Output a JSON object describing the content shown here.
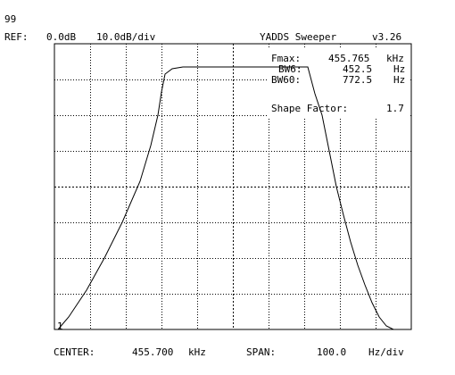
{
  "header": {
    "number": "99",
    "ref_label": "REF:",
    "ref_value": "0.0dB",
    "scale": "10.0dB/div",
    "title": "YADDS Sweeper",
    "version": "v3.26"
  },
  "readout": {
    "fmax_label": "Fmax:",
    "fmax_value": "455.765",
    "fmax_unit": "kHz",
    "bw6_label": "BW6:",
    "bw6_value": "452.5",
    "bw6_unit": "Hz",
    "bw60_label": "BW60:",
    "bw60_value": "772.5",
    "bw60_unit": "Hz",
    "shape_label": "Shape Factor:",
    "shape_value": "1.7"
  },
  "marker_label": "1",
  "footer": {
    "center_label": "CENTER:",
    "center_value": "455.700",
    "center_unit": "kHz",
    "span_label": "SPAN:",
    "span_value": "100.0",
    "span_unit": "Hz/div"
  },
  "colors": {
    "trace": "#000000",
    "grid": "#000000",
    "background": "#ffffff"
  },
  "chart_data": {
    "type": "line",
    "xlabel": "",
    "ylabel": "",
    "x_units": "kHz",
    "y_units": "dB",
    "xlim": [
      455.2,
      456.2
    ],
    "ylim": [
      -80,
      0
    ],
    "grid": true,
    "series": [
      {
        "x": [
          455.21,
          455.24,
          455.29,
          455.34,
          455.39,
          455.44,
          455.47,
          455.49,
          455.5,
          455.51,
          455.53,
          455.56,
          455.6,
          455.7,
          455.8,
          455.91,
          455.93,
          455.95,
          455.97,
          455.99,
          456.01,
          456.03,
          456.05,
          456.07,
          456.09,
          456.11,
          456.13,
          456.15,
          456.17,
          456.2
        ],
        "y": [
          -80.0,
          -76.5,
          -69.0,
          -60.0,
          -50.0,
          -38.5,
          -28.5,
          -20.0,
          -13.5,
          -8.5,
          -7.0,
          -6.5,
          -6.5,
          -6.5,
          -6.5,
          -6.5,
          -14.0,
          -20.0,
          -30.0,
          -40.0,
          -48.0,
          -55.5,
          -62.0,
          -67.5,
          -72.5,
          -76.5,
          -79.0,
          -80.0,
          -80.0,
          -80.0
        ]
      }
    ]
  }
}
